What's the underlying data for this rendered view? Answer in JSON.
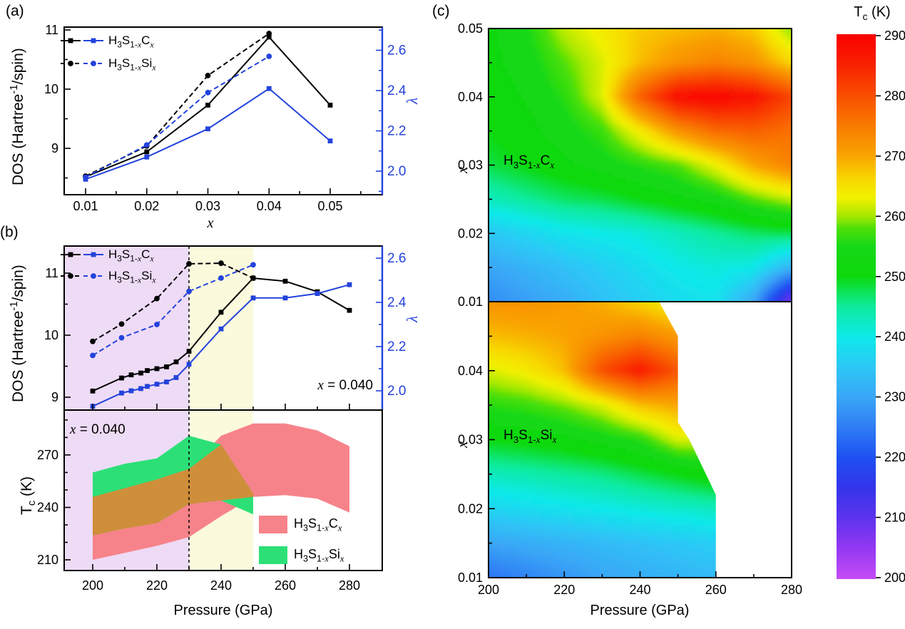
{
  "figure_labels": {
    "a": "(a)",
    "b": "(b)",
    "c": "(c)"
  },
  "formulas": {
    "h3s_c": [
      [
        "n",
        "H"
      ],
      [
        "s",
        "3"
      ],
      [
        "n",
        "S"
      ],
      [
        "s",
        "1-"
      ],
      [
        "si",
        "x"
      ],
      [
        "n",
        "C"
      ],
      [
        "si",
        "x"
      ]
    ],
    "h3s_si": [
      [
        "n",
        "H"
      ],
      [
        "s",
        "3"
      ],
      [
        "n",
        "S"
      ],
      [
        "s",
        "1-"
      ],
      [
        "si",
        "x"
      ],
      [
        "n",
        "Si"
      ],
      [
        "si",
        "x"
      ]
    ]
  },
  "labels": {
    "dos_axis": [
      [
        "n",
        "DOS (Hartree"
      ],
      [
        "su",
        "-1"
      ],
      [
        "n",
        "/spin)"
      ]
    ],
    "lambda_axis": "λ",
    "tc_axis": [
      [
        "n",
        "T"
      ],
      [
        "s",
        "c"
      ],
      [
        "n",
        " (K)"
      ]
    ],
    "x_axis": [
      [
        "it",
        "x"
      ]
    ],
    "pressure_axis_b": "Pressure (GPa)",
    "pressure_axis_c": "Pressure (GPa)",
    "x_equals": [
      [
        "it",
        "x"
      ],
      [
        "n",
        " = 0.040"
      ]
    ],
    "colorbar_title": [
      [
        "n",
        "T"
      ],
      [
        "s",
        "c"
      ],
      [
        "n",
        " (K)"
      ]
    ]
  },
  "colors": {
    "lambda_blue": "#2343dc",
    "black": "#000000",
    "band_red": "#f7838a",
    "band_green": "#2ce077",
    "band_overlap": "#cf8e3a",
    "bg_purple": "#eedbf6",
    "bg_yellow": "#fbfadd"
  },
  "chart_data": {
    "panel_a": {
      "type": "line",
      "xlabel": "x",
      "ylabel_left": "DOS (Hartree-1/spin)",
      "ylabel_right": "lambda",
      "x": [
        0.01,
        0.02,
        0.03,
        0.04,
        0.05
      ],
      "xtick_labels": [
        "0.01",
        "0.02",
        "0.03",
        "0.04",
        "0.05"
      ],
      "dos_ticks": [
        9,
        10,
        11
      ],
      "dos_tick_labels": [
        "9",
        "10",
        "11"
      ],
      "lambda_ticks": [
        2.0,
        2.2,
        2.4,
        2.6
      ],
      "lambda_tick_labels": [
        "2.0",
        "2.2",
        "2.4",
        "2.6"
      ],
      "series": [
        {
          "name": "H3S1-xCx DOS",
          "axis": "dos",
          "line": "solid",
          "marker": "square",
          "color": "black",
          "values": [
            8.52,
            8.94,
            9.73,
            10.88,
            9.73
          ]
        },
        {
          "name": "H3S1-xSix DOS",
          "axis": "dos",
          "line": "dashed",
          "marker": "circle",
          "color": "black",
          "values": [
            8.53,
            9.04,
            10.23,
            10.94,
            null
          ]
        },
        {
          "name": "H3S1-xCx lambda",
          "axis": "lambda",
          "line": "solid",
          "marker": "square",
          "color": "blue",
          "values": [
            1.96,
            2.07,
            2.21,
            2.41,
            2.15
          ]
        },
        {
          "name": "H3S1-xSix lambda",
          "axis": "lambda",
          "line": "dashed",
          "marker": "circle",
          "color": "blue",
          "values": [
            1.97,
            2.13,
            2.39,
            2.57,
            null
          ]
        }
      ]
    },
    "panel_b_dos": {
      "type": "line",
      "annotation": "x = 0.040",
      "xticks": [
        200,
        220,
        240,
        260,
        280
      ],
      "dos_ticks": [
        9,
        10,
        11
      ],
      "dos_tick_labels": [
        "9",
        "10",
        "11"
      ],
      "lambda_ticks": [
        2.0,
        2.2,
        2.4,
        2.6
      ],
      "lambda_tick_labels": [
        "2.0",
        "2.2",
        "2.4",
        "2.6"
      ],
      "series": [
        {
          "name": "H3S1-xCx DOS",
          "axis": "dos",
          "line": "solid",
          "marker": "square",
          "color": "black",
          "P": [
            200,
            209,
            212,
            215,
            217,
            220,
            223,
            226,
            230,
            240,
            250,
            260,
            270,
            280
          ],
          "values": [
            9.1,
            9.31,
            9.36,
            9.39,
            9.43,
            9.46,
            9.49,
            9.57,
            9.74,
            10.37,
            10.92,
            10.87,
            10.7,
            10.4
          ]
        },
        {
          "name": "H3S1-xCx lambda",
          "axis": "lambda",
          "line": "solid",
          "marker": "square",
          "color": "blue",
          "P": [
            200,
            209,
            212,
            215,
            217,
            220,
            223,
            226,
            230,
            240,
            250,
            260,
            270,
            280
          ],
          "values": [
            1.93,
            1.99,
            2.0,
            2.01,
            2.02,
            2.03,
            2.04,
            2.06,
            2.12,
            2.28,
            2.42,
            2.42,
            2.44,
            2.48
          ]
        },
        {
          "name": "H3S1-xSix DOS",
          "axis": "dos",
          "line": "dashed",
          "marker": "circle",
          "color": "black",
          "P": [
            200,
            209,
            220,
            230,
            240,
            250
          ],
          "values": [
            9.9,
            10.18,
            10.59,
            11.15,
            11.16,
            10.92
          ]
        },
        {
          "name": "H3S1-xSix lambda",
          "axis": "lambda",
          "line": "dashed",
          "marker": "circle",
          "color": "blue",
          "P": [
            200,
            209,
            220,
            230,
            240,
            250
          ],
          "values": [
            2.16,
            2.24,
            2.3,
            2.45,
            2.51,
            2.57
          ]
        }
      ]
    },
    "panel_b_tc": {
      "type": "area-band",
      "annotation": "x = 0.040",
      "ylabel": "Tc (K)",
      "xlabel": "Pressure (GPa)",
      "tc_ticks": [
        210,
        240,
        270
      ],
      "tc_tick_labels": [
        "210",
        "240",
        "270"
      ],
      "xticks": [
        200,
        220,
        240,
        260,
        280
      ],
      "xtick_labels": [
        "200",
        "220",
        "240",
        "260",
        "280"
      ],
      "bands": [
        {
          "name": "H3S1-xCx",
          "color": "band_red",
          "P": [
            200,
            210,
            220,
            230,
            240,
            250,
            260,
            270,
            280
          ],
          "lower": [
            210,
            214,
            218,
            223,
            235,
            246,
            247,
            245,
            237
          ],
          "upper": [
            246,
            251,
            256,
            262,
            281,
            288,
            288,
            284,
            275
          ]
        },
        {
          "name": "H3S1-xSix",
          "color": "band_green",
          "P": [
            200,
            210,
            220,
            230,
            240,
            250
          ],
          "lower": [
            224,
            228,
            231,
            242,
            244,
            236
          ],
          "upper": [
            260,
            265,
            268,
            281,
            276,
            248
          ]
        }
      ],
      "shaded_regions": [
        {
          "from": 191,
          "to": 230,
          "color": "bg_purple"
        },
        {
          "from": 230,
          "to": 250,
          "color": "bg_yellow"
        }
      ],
      "dashed_line_at": 230
    },
    "panel_c": {
      "type": "heatmap",
      "xlabel": "Pressure (GPa)",
      "ylabel": "x",
      "pressure": [
        200,
        210,
        220,
        230,
        240,
        250,
        260,
        270,
        280
      ],
      "x_levels": [
        0.05,
        0.045,
        0.04,
        0.035,
        0.03,
        0.025,
        0.02,
        0.015,
        0.01
      ],
      "tc_c": [
        [
          252,
          255,
          261,
          264,
          267,
          268,
          269,
          267,
          259
        ],
        [
          252,
          254,
          258,
          262,
          268,
          272,
          274,
          272,
          266
        ],
        [
          251,
          253,
          256,
          262,
          278,
          288,
          289,
          287,
          281
        ],
        [
          250,
          252,
          254,
          257,
          264,
          272,
          277,
          278,
          276
        ],
        [
          248,
          250,
          252,
          254,
          256,
          258,
          263,
          270,
          274
        ],
        [
          243,
          245,
          247,
          248,
          250,
          252,
          254,
          258,
          261
        ],
        [
          235,
          237,
          239,
          240,
          241,
          243,
          245,
          247,
          248
        ],
        [
          230,
          232,
          234,
          236,
          238,
          240,
          241,
          240,
          232
        ],
        [
          227,
          229,
          231,
          234,
          236,
          238,
          239,
          230,
          207
        ]
      ],
      "tc_si": [
        [
          272,
          272,
          271,
          269,
          266,
          263,
          null,
          null,
          null
        ],
        [
          268,
          269,
          270,
          272,
          274,
          271,
          null,
          null,
          null
        ],
        [
          262,
          264,
          268,
          280,
          286,
          279,
          null,
          null,
          null
        ],
        [
          256,
          257,
          259,
          262,
          268,
          270,
          null,
          null,
          null
        ],
        [
          250,
          251,
          252,
          254,
          256,
          262,
          null,
          null,
          null
        ],
        [
          243,
          244,
          245,
          246,
          248,
          250,
          252,
          null,
          null
        ],
        [
          237,
          238,
          239,
          240,
          241,
          242,
          243,
          null,
          null
        ],
        [
          230,
          231,
          232,
          233,
          234,
          235,
          236,
          null,
          null
        ],
        [
          224,
          226,
          228,
          230,
          231,
          232,
          233,
          null,
          null
        ]
      ],
      "si_data_boundary": [
        [
          200,
          0.05
        ],
        [
          245,
          0.05
        ],
        [
          250,
          0.045
        ],
        [
          250,
          0.0325
        ],
        [
          253,
          0.03
        ],
        [
          260,
          0.022
        ],
        [
          260,
          0.01
        ],
        [
          200,
          0.01
        ]
      ],
      "xticks": [
        200,
        220,
        240,
        260,
        280
      ],
      "xtick_labels": [
        "200",
        "220",
        "240",
        "260",
        "280"
      ],
      "ytick_top": [
        0.05,
        0.04,
        0.03,
        0.02,
        0.01
      ],
      "ytick_top_labels": [
        "0.05",
        "0.04",
        "0.03",
        "0.02",
        "0.01"
      ],
      "ytick_bottom": [
        0.04,
        0.03,
        0.02,
        0.01
      ],
      "ytick_bottom_labels": [
        "0.04",
        "0.03",
        "0.02",
        "0.01"
      ]
    },
    "colorbar": {
      "title": "Tc (K)",
      "min": 200,
      "max": 290,
      "tick_values": [
        290,
        280,
        270,
        260,
        250,
        240,
        230,
        220,
        210,
        200
      ],
      "tick_labels": [
        "290",
        "280",
        "270",
        "260",
        "250",
        "240",
        "230",
        "220",
        "210",
        "200"
      ],
      "stops": [
        [
          200,
          "#c64cf6"
        ],
        [
          205,
          "#9438f2"
        ],
        [
          210,
          "#5f33ee"
        ],
        [
          215,
          "#3434ea"
        ],
        [
          220,
          "#1e50f2"
        ],
        [
          225,
          "#2e7cf4"
        ],
        [
          230,
          "#3aa6f6"
        ],
        [
          235,
          "#2cc8f6"
        ],
        [
          240,
          "#0de9e9"
        ],
        [
          245,
          "#0eeb9e"
        ],
        [
          250,
          "#0cd90c"
        ],
        [
          255,
          "#16d816"
        ],
        [
          258,
          "#4ee007"
        ],
        [
          260,
          "#a8e800"
        ],
        [
          263,
          "#f1f100"
        ],
        [
          266,
          "#f8d800"
        ],
        [
          270,
          "#f9a300"
        ],
        [
          275,
          "#f97a00"
        ],
        [
          280,
          "#f94d00"
        ],
        [
          285,
          "#f92100"
        ],
        [
          290,
          "#fa0000"
        ]
      ]
    }
  }
}
